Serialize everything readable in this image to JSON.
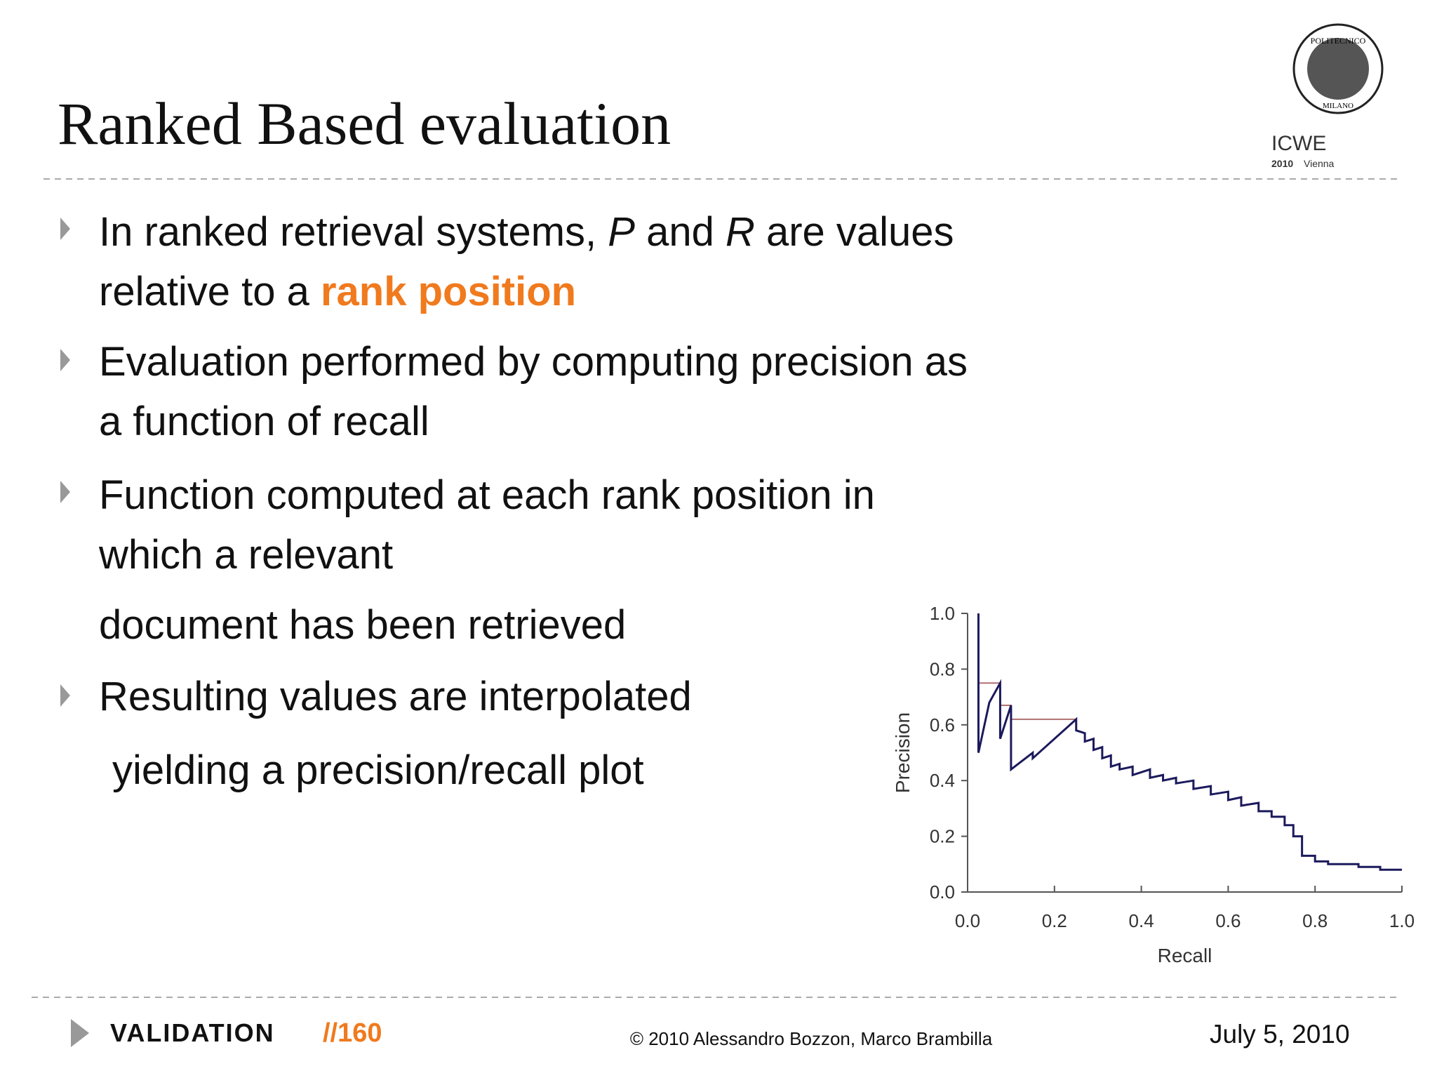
{
  "header": {
    "title": "Ranked Based evaluation"
  },
  "logo": {
    "top": "POLITECNICO",
    "bottom": "MILANO",
    "event": "ICWE",
    "year": "2010",
    "city": "Vienna"
  },
  "bullets": [
    {
      "lines": [
        [
          "In ranked retrieval systems, ",
          "P",
          " and ",
          "R",
          " are values"
        ],
        [
          "relative to a ",
          "rank position"
        ]
      ]
    },
    {
      "lines": [
        [
          "Evaluation performed by computing precision as"
        ],
        [
          "a function of recall"
        ]
      ]
    },
    {
      "lines": [
        [
          "Function computed at each rank position in"
        ],
        [
          "which a relevant"
        ],
        [
          "document has been retrieved"
        ]
      ]
    },
    {
      "lines": [
        [
          "Resulting values are interpolated"
        ],
        [
          "yielding a precision/recall plot"
        ]
      ]
    }
  ],
  "chart_data": {
    "type": "line",
    "xlabel": "Recall",
    "ylabel": "Precision",
    "xlim": [
      0,
      1
    ],
    "ylim": [
      0,
      1
    ],
    "xticks": [
      {
        "value": 0,
        "label": "0.0"
      },
      0.2,
      0.4,
      0.6,
      0.8,
      {
        "value": 1,
        "label": "1.0"
      }
    ],
    "yticks": [
      {
        "value": 0,
        "label": "0.0"
      },
      0.2,
      0.4,
      0.6,
      0.8,
      {
        "value": 1,
        "label": "1.0"
      }
    ],
    "series": [
      {
        "color": "#b07070",
        "x": [
          0.025,
          0.025,
          0.075,
          0.075,
          0.1,
          0.1,
          0.25
        ],
        "values": [
          1.0,
          0.75,
          0.75,
          0.67,
          0.67,
          0.62,
          0.62
        ]
      },
      {
        "color": "#1c1a5c",
        "x": [
          0.025,
          0.025,
          0.05,
          0.075,
          0.075,
          0.1,
          0.1,
          0.15,
          0.15,
          0.25,
          0.25,
          0.27,
          0.27,
          0.29,
          0.29,
          0.31,
          0.31,
          0.33,
          0.33,
          0.35,
          0.35,
          0.38,
          0.38,
          0.42,
          0.42,
          0.45,
          0.45,
          0.48,
          0.48,
          0.52,
          0.52,
          0.56,
          0.56,
          0.6,
          0.6,
          0.63,
          0.63,
          0.67,
          0.67,
          0.7,
          0.7,
          0.73,
          0.73,
          0.75,
          0.75,
          0.77,
          0.77,
          0.8,
          0.8,
          0.83,
          0.83,
          0.9,
          0.9,
          0.95,
          0.95,
          1.0
        ],
        "values": [
          1.0,
          0.5,
          0.68,
          0.75,
          0.55,
          0.67,
          0.44,
          0.5,
          0.48,
          0.62,
          0.58,
          0.57,
          0.54,
          0.55,
          0.51,
          0.52,
          0.48,
          0.49,
          0.45,
          0.46,
          0.44,
          0.45,
          0.42,
          0.44,
          0.41,
          0.42,
          0.4,
          0.41,
          0.39,
          0.4,
          0.37,
          0.38,
          0.35,
          0.36,
          0.33,
          0.34,
          0.31,
          0.32,
          0.29,
          0.29,
          0.27,
          0.27,
          0.24,
          0.24,
          0.2,
          0.2,
          0.13,
          0.13,
          0.11,
          0.11,
          0.1,
          0.1,
          0.09,
          0.09,
          0.08,
          0.08
        ]
      }
    ]
  },
  "footer": {
    "section": "VALIDATION",
    "page": "//160",
    "copyright": "© 2010 Alessandro Bozzon, Marco Brambilla",
    "date": "July 5, 2010"
  }
}
